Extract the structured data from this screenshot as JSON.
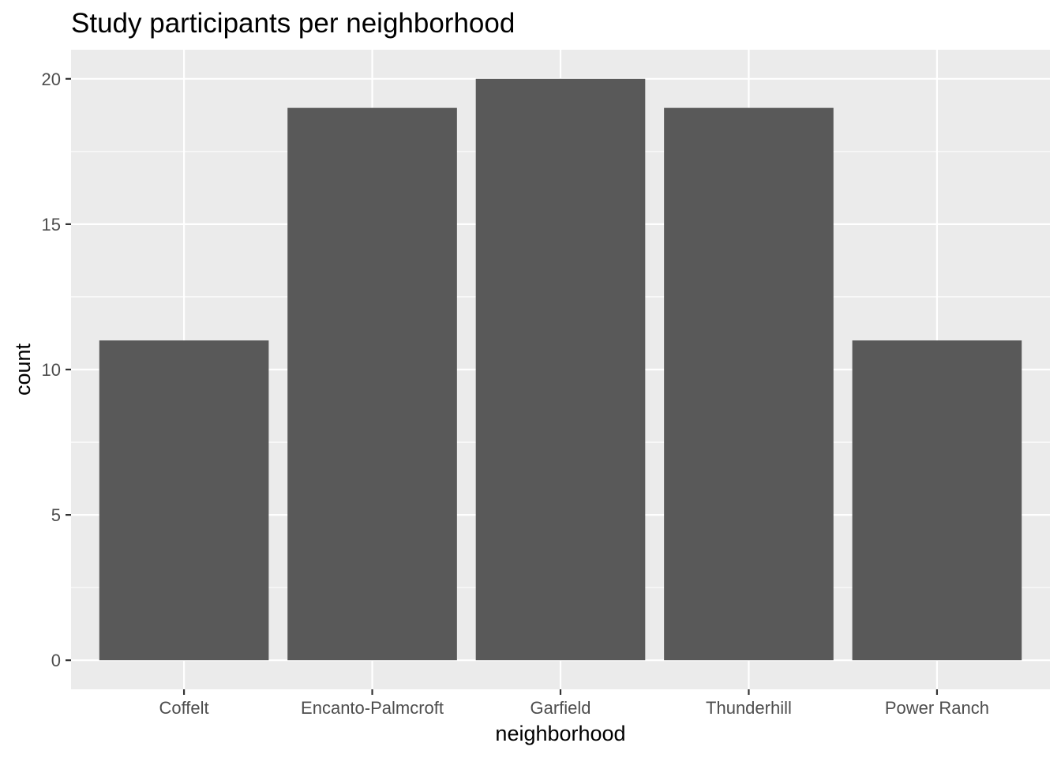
{
  "chart_data": {
    "type": "bar",
    "title": "Study participants per neighborhood",
    "xlabel": "neighborhood",
    "ylabel": "count",
    "categories": [
      "Coffelt",
      "Encanto-Palmcroft",
      "Garfield",
      "Thunderhill",
      "Power Ranch"
    ],
    "values": [
      11,
      19,
      20,
      19,
      11
    ],
    "ylim": [
      -1,
      21
    ],
    "yticks": [
      0,
      5,
      10,
      15,
      20
    ],
    "y_minor_ticks": [
      2.5,
      7.5,
      12.5,
      17.5
    ],
    "grid": true,
    "legend": "none",
    "colors": {
      "bar": "#595959",
      "panel_background": "#ebebeb",
      "grid_line": "#ffffff",
      "tick_mark": "#333333",
      "tick_label": "#4d4d4d",
      "text": "#000000"
    }
  }
}
